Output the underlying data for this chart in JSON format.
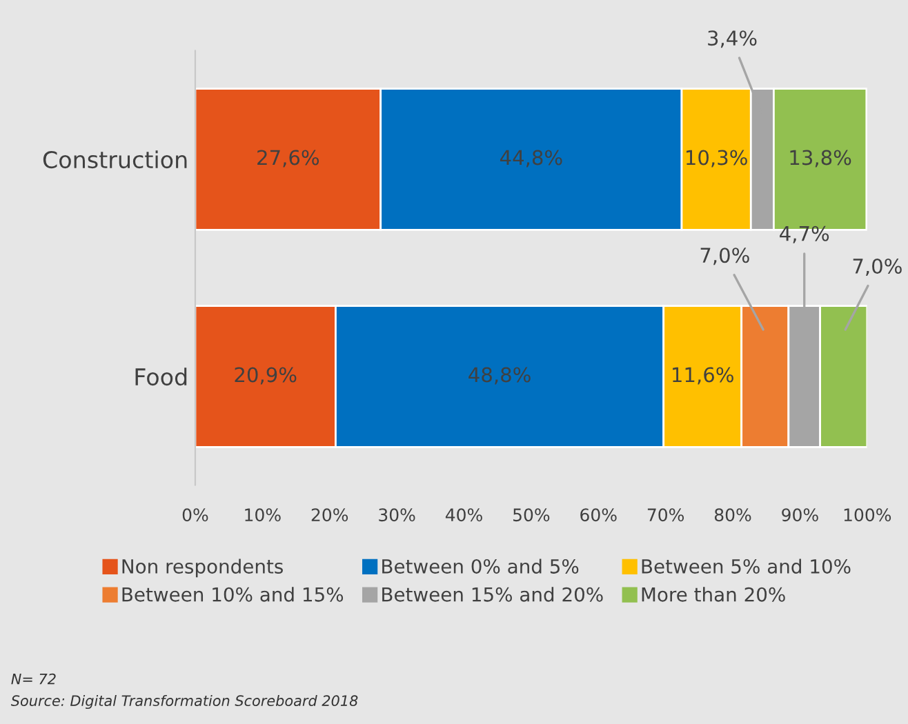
{
  "chart_data": {
    "type": "bar",
    "orientation": "horizontal",
    "stacked": true,
    "categories": [
      "Construction",
      "Food"
    ],
    "series": [
      {
        "name": "Non respondents",
        "color": "#e5541b",
        "values": [
          27.6,
          20.9
        ],
        "value_labels": [
          "27,6%",
          "20,9%"
        ]
      },
      {
        "name": "Between 0% and 5%",
        "color": "#0070c0",
        "values": [
          44.8,
          48.8
        ],
        "value_labels": [
          "44,8%",
          "48,8%"
        ]
      },
      {
        "name": "Between 5% and 10%",
        "color": "#ffc000",
        "values": [
          10.3,
          11.6
        ],
        "value_labels": [
          "10,3%",
          "11,6%"
        ]
      },
      {
        "name": "Between 10% and 15%",
        "color": "#ed7d31",
        "values": [
          null,
          7.0
        ],
        "value_labels": [
          null,
          "7,0%"
        ]
      },
      {
        "name": "Between 15% and 20%",
        "color": "#a5a5a5",
        "values": [
          3.4,
          4.7
        ],
        "value_labels": [
          "3,4%",
          "4,7%"
        ]
      },
      {
        "name": "More than 20%",
        "color": "#92c050",
        "values": [
          13.8,
          7.0
        ],
        "value_labels": [
          "13,8%",
          "7,0%"
        ]
      }
    ],
    "xlim": [
      0,
      100
    ],
    "xticks": [
      {
        "value": 0,
        "label": "0%"
      },
      {
        "value": 10,
        "label": "10%"
      },
      {
        "value": 20,
        "label": "20%"
      },
      {
        "value": 30,
        "label": "30%"
      },
      {
        "value": 40,
        "label": "40%"
      },
      {
        "value": 50,
        "label": "50%"
      },
      {
        "value": 60,
        "label": "60%"
      },
      {
        "value": 70,
        "label": "70%"
      },
      {
        "value": 80,
        "label": "80%"
      },
      {
        "value": 90,
        "label": "90%"
      },
      {
        "value": 100,
        "label": "100%"
      }
    ],
    "legend": "bottom",
    "grid": false,
    "annotations": [
      "N= 72",
      "Source: Digital Transformation Scoreboard 2018"
    ]
  }
}
